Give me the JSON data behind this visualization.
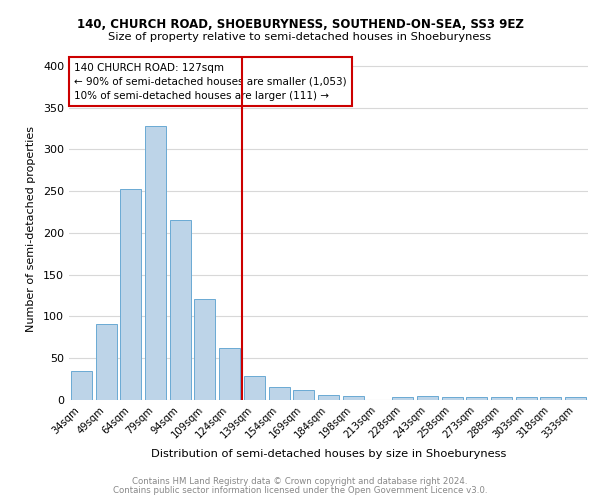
{
  "title1": "140, CHURCH ROAD, SHOEBURYNESS, SOUTHEND-ON-SEA, SS3 9EZ",
  "title2": "Size of property relative to semi-detached houses in Shoeburyness",
  "xlabel": "Distribution of semi-detached houses by size in Shoeburyness",
  "ylabel": "Number of semi-detached properties",
  "footer1": "Contains HM Land Registry data © Crown copyright and database right 2024.",
  "footer2": "Contains public sector information licensed under the Open Government Licence v3.0.",
  "categories": [
    "34sqm",
    "49sqm",
    "64sqm",
    "79sqm",
    "94sqm",
    "109sqm",
    "124sqm",
    "139sqm",
    "154sqm",
    "169sqm",
    "184sqm",
    "198sqm",
    "213sqm",
    "228sqm",
    "243sqm",
    "258sqm",
    "273sqm",
    "288sqm",
    "303sqm",
    "318sqm",
    "333sqm"
  ],
  "values": [
    35,
    91,
    253,
    328,
    215,
    121,
    62,
    29,
    15,
    12,
    6,
    5,
    0,
    3,
    5,
    4,
    3,
    3,
    3,
    3,
    3
  ],
  "bar_color": "#bdd4e8",
  "bar_edge_color": "#6aaad4",
  "vline_x_index": 6,
  "vline_color": "#cc0000",
  "annotation_line1": "140 CHURCH ROAD: 127sqm",
  "annotation_line2": "← 90% of semi-detached houses are smaller (1,053)",
  "annotation_line3": "10% of semi-detached houses are larger (111) →",
  "annotation_box_color": "#cc0000",
  "ylim": [
    0,
    410
  ],
  "yticks": [
    0,
    50,
    100,
    150,
    200,
    250,
    300,
    350,
    400
  ],
  "background_color": "#ffffff",
  "grid_color": "#d8d8d8"
}
